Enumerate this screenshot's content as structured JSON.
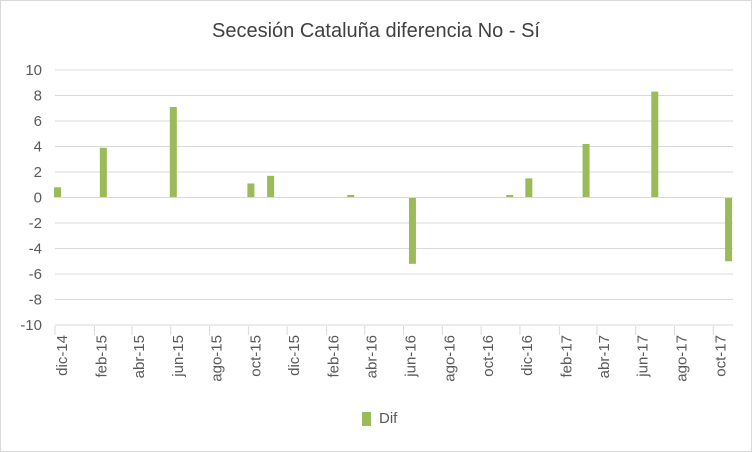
{
  "chart_data": {
    "type": "bar",
    "title": "Secesión Cataluña diferencia No - Sí",
    "xlabel": "",
    "ylabel": "",
    "ylim": [
      -10,
      10
    ],
    "yticks": [
      10,
      8,
      6,
      4,
      2,
      0,
      -2,
      -4,
      -6,
      -8,
      -10
    ],
    "x_start": "2014-12",
    "x_end": "2017-10",
    "x_tick_labels": [
      "dic-14",
      "feb-15",
      "abr-15",
      "jun-15",
      "ago-15",
      "oct-15",
      "dic-15",
      "feb-16",
      "abr-16",
      "jun-16",
      "ago-16",
      "oct-16",
      "dic-16",
      "feb-17",
      "abr-17",
      "jun-17",
      "ago-17",
      "oct-17"
    ],
    "series": [
      {
        "name": "Dif",
        "color": "#9bbb59",
        "points": [
          {
            "date": "2014-12-05",
            "value": 0.8
          },
          {
            "date": "2015-02-15",
            "value": 3.9
          },
          {
            "date": "2015-06-05",
            "value": 7.1
          },
          {
            "date": "2015-10-05",
            "value": 1.1
          },
          {
            "date": "2015-11-05",
            "value": 1.7
          },
          {
            "date": "2016-03-10",
            "value": 0.2
          },
          {
            "date": "2016-06-15",
            "value": -5.2
          },
          {
            "date": "2016-11-15",
            "value": 0.2
          },
          {
            "date": "2016-12-15",
            "value": 1.5
          },
          {
            "date": "2017-03-15",
            "value": 4.2
          },
          {
            "date": "2017-07-01",
            "value": 8.3
          },
          {
            "date": "2017-10-25",
            "value": -5.0
          }
        ]
      }
    ],
    "grid": true,
    "legend_position": "bottom"
  }
}
